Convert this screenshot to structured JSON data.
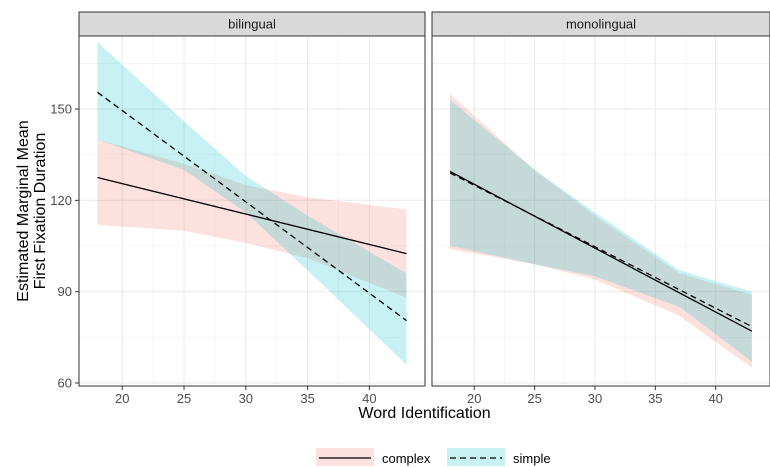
{
  "chart_data": {
    "type": "line",
    "title": "",
    "xlabel": "Word Identification",
    "ylabel_lines": [
      "Estimated Marginal Mean",
      "First Fixation Duration"
    ],
    "xlim": [
      16.5,
      44.5
    ],
    "ylim": [
      59,
      174
    ],
    "x_ticks": [
      20,
      25,
      30,
      35,
      40
    ],
    "y_ticks": [
      60,
      90,
      120,
      150
    ],
    "grid": true,
    "legend_position": "bottom",
    "colors": {
      "complex_ribbon": "#F8766D",
      "simple_ribbon": "#00BFC4",
      "line": "#000000"
    },
    "panels": [
      {
        "name": "bilingual",
        "series": [
          {
            "name": "complex",
            "linetype": "solid",
            "x": [
              18,
              43
            ],
            "y": [
              127.5,
              102.5
            ],
            "ribbon_upper": [
              [
                18,
                140
              ],
              [
                25,
                132
              ],
              [
                30,
                125
              ],
              [
                35,
                121
              ],
              [
                43,
                117
              ]
            ],
            "ribbon_lower": [
              [
                18,
                112
              ],
              [
                25,
                110
              ],
              [
                30,
                106
              ],
              [
                35,
                101
              ],
              [
                43,
                88
              ]
            ]
          },
          {
            "name": "simple",
            "linetype": "dashed",
            "x": [
              18,
              43
            ],
            "y": [
              155.5,
              80.5
            ],
            "ribbon_upper": [
              [
                18,
                172
              ],
              [
                25,
                146
              ],
              [
                30,
                128
              ],
              [
                35,
                115
              ],
              [
                43,
                96
              ]
            ],
            "ribbon_lower": [
              [
                18,
                140
              ],
              [
                25,
                130
              ],
              [
                30,
                116
              ],
              [
                35,
                97
              ],
              [
                43,
                66
              ]
            ]
          }
        ]
      },
      {
        "name": "monolingual",
        "series": [
          {
            "name": "complex",
            "linetype": "solid",
            "x": [
              18,
              43
            ],
            "y": [
              129.5,
              77
            ],
            "ribbon_upper": [
              [
                18,
                155
              ],
              [
                25,
                130
              ],
              [
                30,
                115
              ],
              [
                37,
                96
              ],
              [
                43,
                89
              ]
            ],
            "ribbon_lower": [
              [
                18,
                104
              ],
              [
                25,
                99
              ],
              [
                30,
                94
              ],
              [
                37,
                82
              ],
              [
                43,
                65
              ]
            ]
          },
          {
            "name": "simple",
            "linetype": "dashed",
            "x": [
              18,
              43
            ],
            "y": [
              129,
              78.5
            ],
            "ribbon_upper": [
              [
                18,
                153
              ],
              [
                25,
                130
              ],
              [
                30,
                116
              ],
              [
                37,
                97
              ],
              [
                43,
                90
              ]
            ],
            "ribbon_lower": [
              [
                18,
                105
              ],
              [
                25,
                99
              ],
              [
                30,
                95
              ],
              [
                37,
                85
              ],
              [
                43,
                67
              ]
            ]
          }
        ]
      }
    ],
    "legend": [
      {
        "name": "complex",
        "linetype": "solid"
      },
      {
        "name": "simple",
        "linetype": "dashed"
      }
    ]
  }
}
